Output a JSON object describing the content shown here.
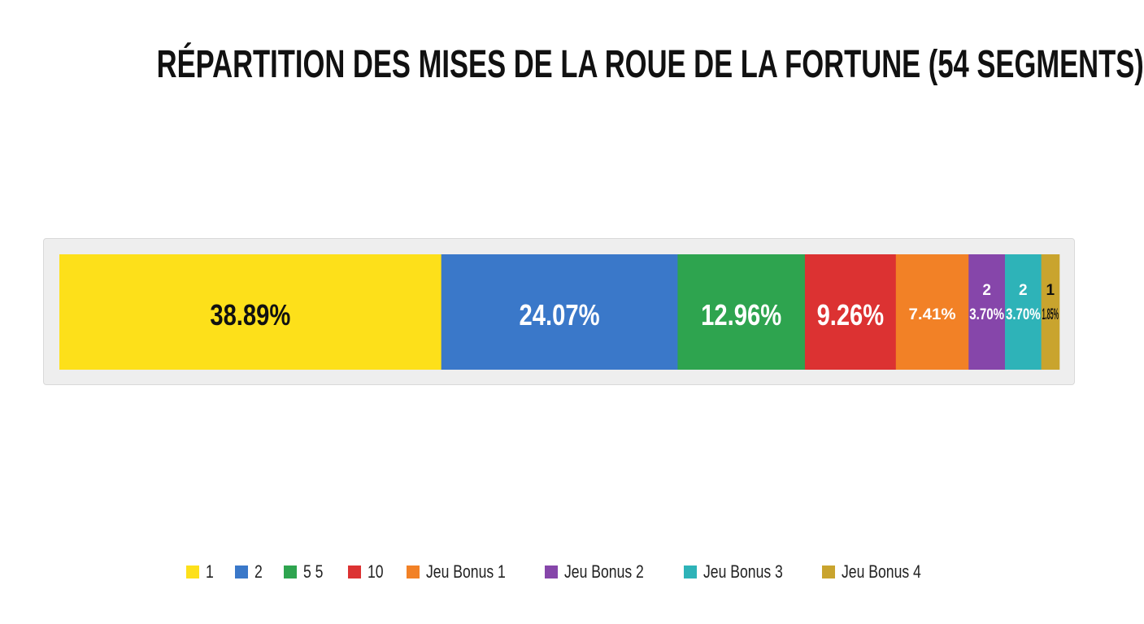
{
  "chart_data": {
    "type": "bar",
    "orientation": "horizontal",
    "stacked": true,
    "title": "RÉPARTITION DES MISES DE LA ROUE DE LA FORTUNE (54 SEGMENTS)",
    "total": 54,
    "series": [
      {
        "name": "1",
        "count": null,
        "percent": 38.89,
        "label": "38.89%",
        "color": "#fde01a",
        "text_color": "#111111"
      },
      {
        "name": "2",
        "count": null,
        "percent": 24.07,
        "label": "24.07%",
        "color": "#3a78c9",
        "text_color": "#ffffff"
      },
      {
        "name": "5   5",
        "count": null,
        "percent": 12.96,
        "label": "12.96%",
        "color": "#2ea44f",
        "text_color": "#ffffff"
      },
      {
        "name": "10",
        "count": null,
        "percent": 9.26,
        "label": "9.26%",
        "color": "#dc3232",
        "text_color": "#ffffff"
      },
      {
        "name": "Jeu Bonus 1",
        "count": null,
        "percent": 7.41,
        "label": "7.41%",
        "color": "#f28126",
        "text_color": "#ffffff"
      },
      {
        "name": "Jeu Bonus 2",
        "count": "2",
        "percent": 3.7,
        "label": "3.70%",
        "color": "#8646aa",
        "text_color": "#ffffff"
      },
      {
        "name": "Jeu Bonus 3",
        "count": "2",
        "percent": 3.7,
        "label": "3.70%",
        "color": "#2eb3b8",
        "text_color": "#ffffff"
      },
      {
        "name": "Jeu Bonus 4",
        "count": "1",
        "percent": 1.85,
        "label": "1.85%",
        "color": "#c9a42e",
        "text_color": "#111111"
      }
    ],
    "legend_position": "bottom"
  }
}
